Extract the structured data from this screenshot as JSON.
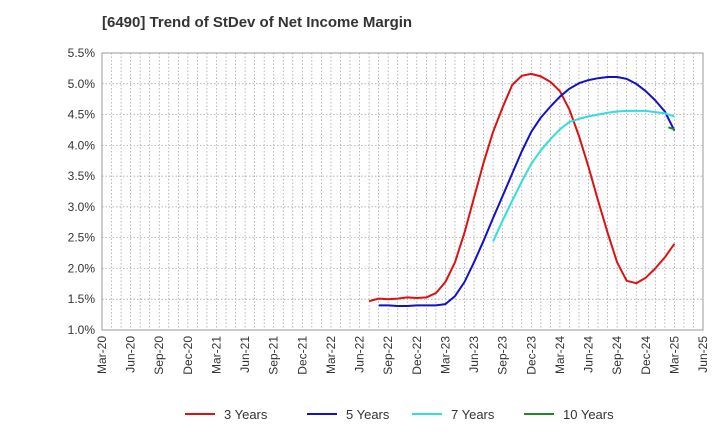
{
  "chart_data": {
    "type": "line",
    "title": "[6490]  Trend of StDev of Net Income Margin",
    "x_ticks": [
      "Mar-20",
      "Jun-20",
      "Sep-20",
      "Dec-20",
      "Mar-21",
      "Jun-21",
      "Sep-21",
      "Dec-21",
      "Mar-22",
      "Jun-22",
      "Sep-22",
      "Dec-22",
      "Mar-23",
      "Jun-23",
      "Sep-23",
      "Dec-23",
      "Mar-24",
      "Jun-24",
      "Sep-24",
      "Dec-24",
      "Mar-25",
      "Jun-25"
    ],
    "y_ticks": [
      "1.0%",
      "1.5%",
      "2.0%",
      "2.5%",
      "3.0%",
      "3.5%",
      "4.0%",
      "4.5%",
      "5.0%",
      "5.5%"
    ],
    "ylim": [
      1.0,
      5.5
    ],
    "y_unit": "%",
    "grid": true,
    "legend_position": "bottom",
    "series": [
      {
        "name": "3 Years",
        "color": "#dd1111",
        "values": [
          1.47,
          1.51,
          1.5,
          1.51,
          1.53,
          1.52,
          1.53,
          1.6,
          1.78,
          2.1,
          2.58,
          3.15,
          3.72,
          4.22,
          4.62,
          4.98,
          5.13,
          5.16,
          5.12,
          5.03,
          4.88,
          4.58,
          4.15,
          3.65,
          3.1,
          2.58,
          2.1,
          1.8,
          1.76,
          1.85,
          2.0,
          2.18,
          2.4
        ]
      },
      {
        "name": "5 Years",
        "color": "#1111cc",
        "values": [
          1.4,
          1.4,
          1.39,
          1.39,
          1.4,
          1.4,
          1.4,
          1.42,
          1.55,
          1.78,
          2.1,
          2.45,
          2.82,
          3.18,
          3.54,
          3.9,
          4.22,
          4.45,
          4.63,
          4.79,
          4.92,
          5.01,
          5.06,
          5.09,
          5.11,
          5.11,
          5.08,
          5.0,
          4.88,
          4.73,
          4.55,
          4.24
        ]
      },
      {
        "name": "7 Years",
        "color": "#33dddd",
        "values": [
          2.44,
          2.78,
          3.1,
          3.41,
          3.7,
          3.92,
          4.1,
          4.26,
          4.38,
          4.43,
          4.47,
          4.5,
          4.53,
          4.55,
          4.56,
          4.56,
          4.56,
          4.54,
          4.52,
          4.47
        ]
      },
      {
        "name": "10 Years",
        "color": "#228822",
        "values": [
          4.26
        ]
      }
    ]
  }
}
